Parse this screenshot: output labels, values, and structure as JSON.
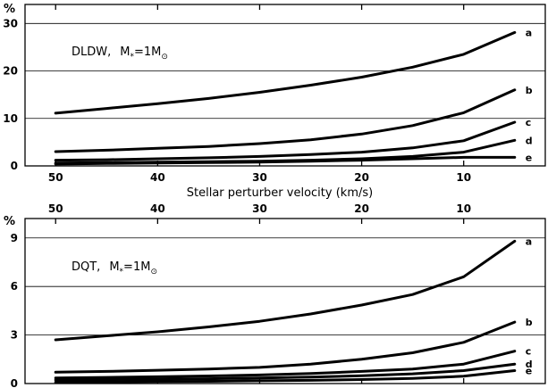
{
  "xlabel": "Stellar perturber velocity (km/s)",
  "chart_data": [
    {
      "type": "line",
      "annotation": {
        "name": "DLDW,",
        "mass_prefix": "M",
        "mass_sub": "*",
        "mass_value": "=1M",
        "mass_unit_sub": "⊙"
      },
      "ylabel": "%",
      "xlim": [
        53,
        2
      ],
      "ylim": [
        0,
        34
      ],
      "xticks": [
        "50",
        "40",
        "30",
        "20",
        "10"
      ],
      "xtick_values": [
        50,
        40,
        30,
        20,
        10
      ],
      "yticks": [
        "0",
        "10",
        "20",
        "30"
      ],
      "ytick_values": [
        0,
        10,
        20,
        30
      ],
      "x": [
        50,
        45,
        40,
        35,
        30,
        25,
        20,
        15,
        10,
        5
      ],
      "series": [
        {
          "name": "a",
          "values": [
            11.1,
            12.1,
            13.1,
            14.2,
            15.5,
            17.0,
            18.7,
            20.8,
            23.5,
            28.1
          ]
        },
        {
          "name": "b",
          "values": [
            3.0,
            3.3,
            3.7,
            4.1,
            4.7,
            5.5,
            6.7,
            8.5,
            11.2,
            16.0
          ]
        },
        {
          "name": "c",
          "values": [
            1.2,
            1.3,
            1.5,
            1.7,
            2.0,
            2.4,
            2.9,
            3.8,
            5.3,
            9.2
          ]
        },
        {
          "name": "d",
          "values": [
            0.6,
            0.7,
            0.8,
            0.9,
            1.0,
            1.2,
            1.5,
            2.0,
            2.9,
            5.4
          ]
        },
        {
          "name": "e",
          "values": [
            0.4,
            0.5,
            0.6,
            0.7,
            0.8,
            1.0,
            1.2,
            1.5,
            1.8,
            1.8
          ]
        }
      ]
    },
    {
      "type": "line",
      "annotation": {
        "name": "DQT,",
        "mass_prefix": "M",
        "mass_sub": "*",
        "mass_value": "=1M",
        "mass_unit_sub": "⊙"
      },
      "ylabel": "%",
      "xlim": [
        53,
        2
      ],
      "ylim": [
        0,
        10.2
      ],
      "xticks": [
        "50",
        "40",
        "30",
        "20",
        "10"
      ],
      "xtick_values": [
        50,
        40,
        30,
        20,
        10
      ],
      "yticks": [
        "0",
        "3",
        "6",
        "9"
      ],
      "ytick_values": [
        0,
        3,
        6,
        9
      ],
      "x": [
        50,
        45,
        40,
        35,
        30,
        25,
        20,
        15,
        10,
        5
      ],
      "series": [
        {
          "name": "a",
          "values": [
            2.7,
            2.95,
            3.2,
            3.5,
            3.85,
            4.3,
            4.85,
            5.5,
            6.6,
            8.8
          ]
        },
        {
          "name": "b",
          "values": [
            0.7,
            0.75,
            0.82,
            0.9,
            1.0,
            1.2,
            1.5,
            1.9,
            2.55,
            3.8
          ]
        },
        {
          "name": "c",
          "values": [
            0.35,
            0.38,
            0.42,
            0.47,
            0.53,
            0.62,
            0.75,
            0.9,
            1.2,
            2.0
          ]
        },
        {
          "name": "d",
          "values": [
            0.22,
            0.24,
            0.27,
            0.3,
            0.34,
            0.4,
            0.48,
            0.6,
            0.8,
            1.2
          ]
        },
        {
          "name": "e",
          "values": [
            0.08,
            0.1,
            0.12,
            0.14,
            0.17,
            0.2,
            0.25,
            0.32,
            0.45,
            0.8
          ]
        }
      ]
    }
  ]
}
